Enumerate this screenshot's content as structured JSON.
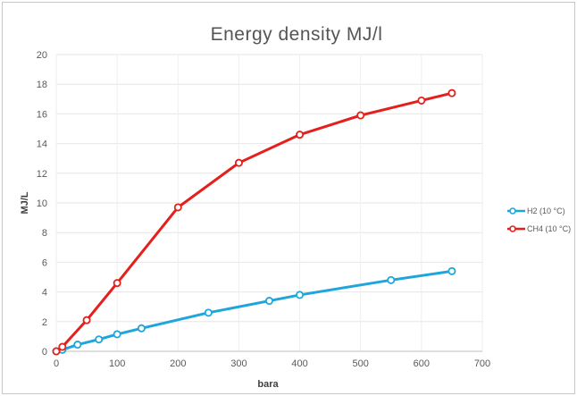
{
  "chart_data": {
    "type": "line",
    "title": "Energy density MJ/l",
    "xlabel": "bara",
    "ylabel": "MJ/L",
    "xlim": [
      0,
      700
    ],
    "ylim": [
      0,
      20
    ],
    "x_ticks": [
      0,
      100,
      200,
      300,
      400,
      500,
      600,
      700
    ],
    "y_ticks": [
      0,
      2,
      4,
      6,
      8,
      10,
      12,
      14,
      16,
      18,
      20
    ],
    "grid": true,
    "legend_position": "right",
    "series": [
      {
        "name": "H2 (10 °C)",
        "color": "#1ea6dc",
        "x": [
          0,
          10,
          35,
          70,
          100,
          140,
          250,
          350,
          400,
          550,
          650
        ],
        "y": [
          0.0,
          0.1,
          0.45,
          0.8,
          1.15,
          1.55,
          2.6,
          3.4,
          3.8,
          4.8,
          5.4
        ]
      },
      {
        "name": "CH4 (10 °C)",
        "color": "#e3201b",
        "x": [
          0,
          10,
          50,
          100,
          200,
          300,
          400,
          500,
          600,
          650
        ],
        "y": [
          0.0,
          0.3,
          2.1,
          4.6,
          9.7,
          12.7,
          14.6,
          15.9,
          16.9,
          17.4
        ]
      }
    ]
  }
}
